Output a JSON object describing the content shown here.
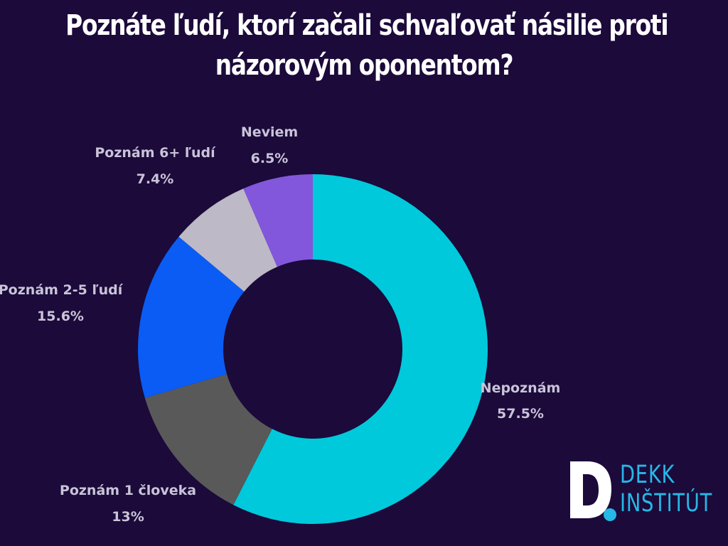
{
  "title": {
    "line1": "Poznáte ľudí, ktorí začali schvaľovať násilie proti",
    "line2": "názorovým oponentom?"
  },
  "chart_data": {
    "type": "pie",
    "donut": true,
    "title": "Poznáte ľudí, ktorí začali schvaľovať násilie proti názorovým oponentom?",
    "slices": [
      {
        "label": "Nepoznám",
        "value": 57.5,
        "display": "57.5%",
        "color": "#00c9dc"
      },
      {
        "label": "Poznám 1 človeka",
        "value": 13,
        "display": "13%",
        "color": "#595959"
      },
      {
        "label": "Poznám 2-5 ľudí",
        "value": 15.6,
        "display": "15.6%",
        "color": "#0a5cf5"
      },
      {
        "label": "Poznám 6+ ľudí",
        "value": 7.4,
        "display": "7.4%",
        "color": "#bdb9c6"
      },
      {
        "label": "Neviem",
        "value": 6.5,
        "display": "6.5%",
        "color": "#8257db"
      }
    ]
  },
  "logo": {
    "line1": "DEKK",
    "line2": "INŠTITÚT",
    "color": "#25b9e6"
  }
}
